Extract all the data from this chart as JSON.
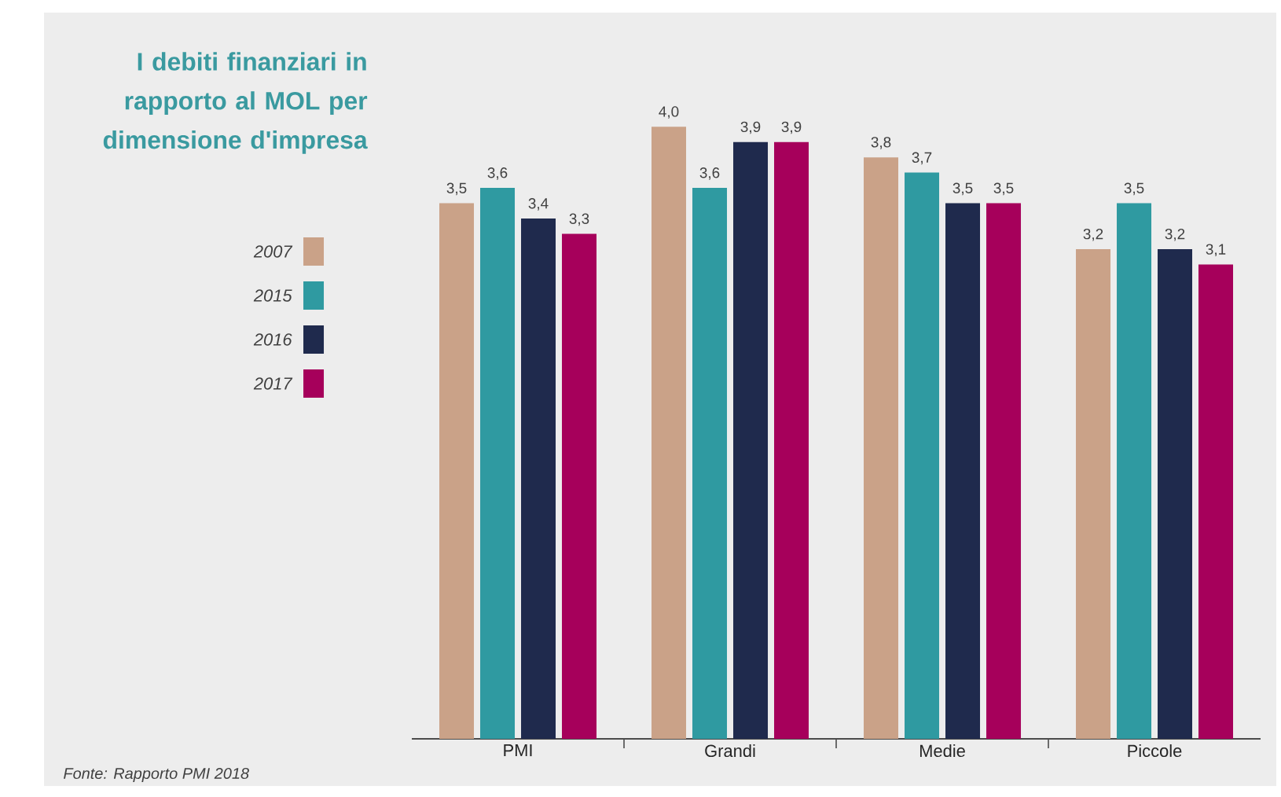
{
  "chart_data": {
    "type": "bar",
    "title": "I debiti finanziari in rapporto al MOL per dimensione d'impresa",
    "categories": [
      "PMI",
      "Grandi",
      "Medie",
      "Piccole"
    ],
    "series": [
      {
        "name": "2007",
        "color": "#caa288",
        "values": [
          3.5,
          4.0,
          3.8,
          3.2
        ],
        "value_labels": [
          "3,5",
          "4,0",
          "3,8",
          "3,2"
        ]
      },
      {
        "name": "2015",
        "color": "#2f9aa1",
        "values": [
          3.6,
          3.6,
          3.7,
          3.5
        ],
        "value_labels": [
          "3,6",
          "3,6",
          "3,7",
          "3,5"
        ]
      },
      {
        "name": "2016",
        "color": "#1f2a4d",
        "values": [
          3.4,
          3.9,
          3.5,
          3.2
        ],
        "value_labels": [
          "3,4",
          "3,9",
          "3,5",
          "3,2"
        ]
      },
      {
        "name": "2017",
        "color": "#a6005b",
        "values": [
          3.3,
          3.9,
          3.5,
          3.1
        ],
        "value_labels": [
          "3,3",
          "3,9",
          "3,5",
          "3,1"
        ]
      }
    ],
    "legend": "left",
    "annotations": [
      "Fonte: Rapporto PMI 2018"
    ]
  }
}
